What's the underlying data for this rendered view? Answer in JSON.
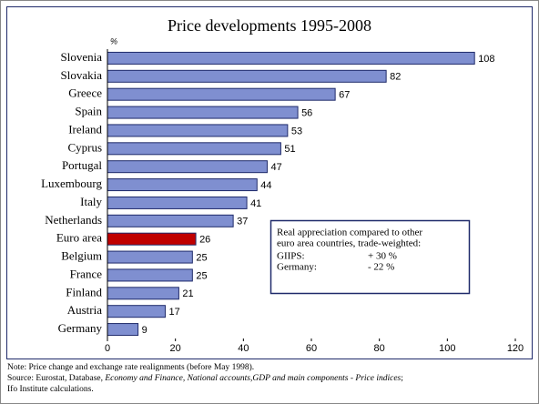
{
  "chart_data": {
    "type": "bar",
    "orientation": "horizontal",
    "title": "Price developments 1995-2008",
    "unit_label": "%",
    "categories": [
      "Slovenia",
      "Slovakia",
      "Greece",
      "Spain",
      "Ireland",
      "Cyprus",
      "Portugal",
      "Luxembourg",
      "Italy",
      "Netherlands",
      "Euro area",
      "Belgium",
      "France",
      "Finland",
      "Austria",
      "Germany"
    ],
    "values": [
      108,
      82,
      67,
      56,
      53,
      51,
      47,
      44,
      41,
      37,
      26,
      25,
      25,
      21,
      17,
      9
    ],
    "colors": [
      "#7f8fd0",
      "#7f8fd0",
      "#7f8fd0",
      "#7f8fd0",
      "#7f8fd0",
      "#7f8fd0",
      "#7f8fd0",
      "#7f8fd0",
      "#7f8fd0",
      "#7f8fd0",
      "#c00000",
      "#7f8fd0",
      "#7f8fd0",
      "#7f8fd0",
      "#7f8fd0",
      "#7f8fd0"
    ],
    "xlim": [
      0,
      120
    ],
    "xticks": [
      0,
      20,
      40,
      60,
      80,
      100,
      120
    ],
    "annotation": {
      "lines": [
        "Real appreciation compared to other",
        "euro area countries, trade-weighted:"
      ],
      "rows": [
        [
          "GIIPS:",
          "+ 30 %"
        ],
        [
          "Germany:",
          "- 22 %"
        ]
      ]
    },
    "note": "Note: Price change and exchange rate realignments (before May 1998).",
    "source": [
      "Source: Eurostat, Database, ",
      "Economy and Finance, National accounts,GDP and main components - Price indices",
      ";",
      "Ifo Institute calculations."
    ]
  }
}
